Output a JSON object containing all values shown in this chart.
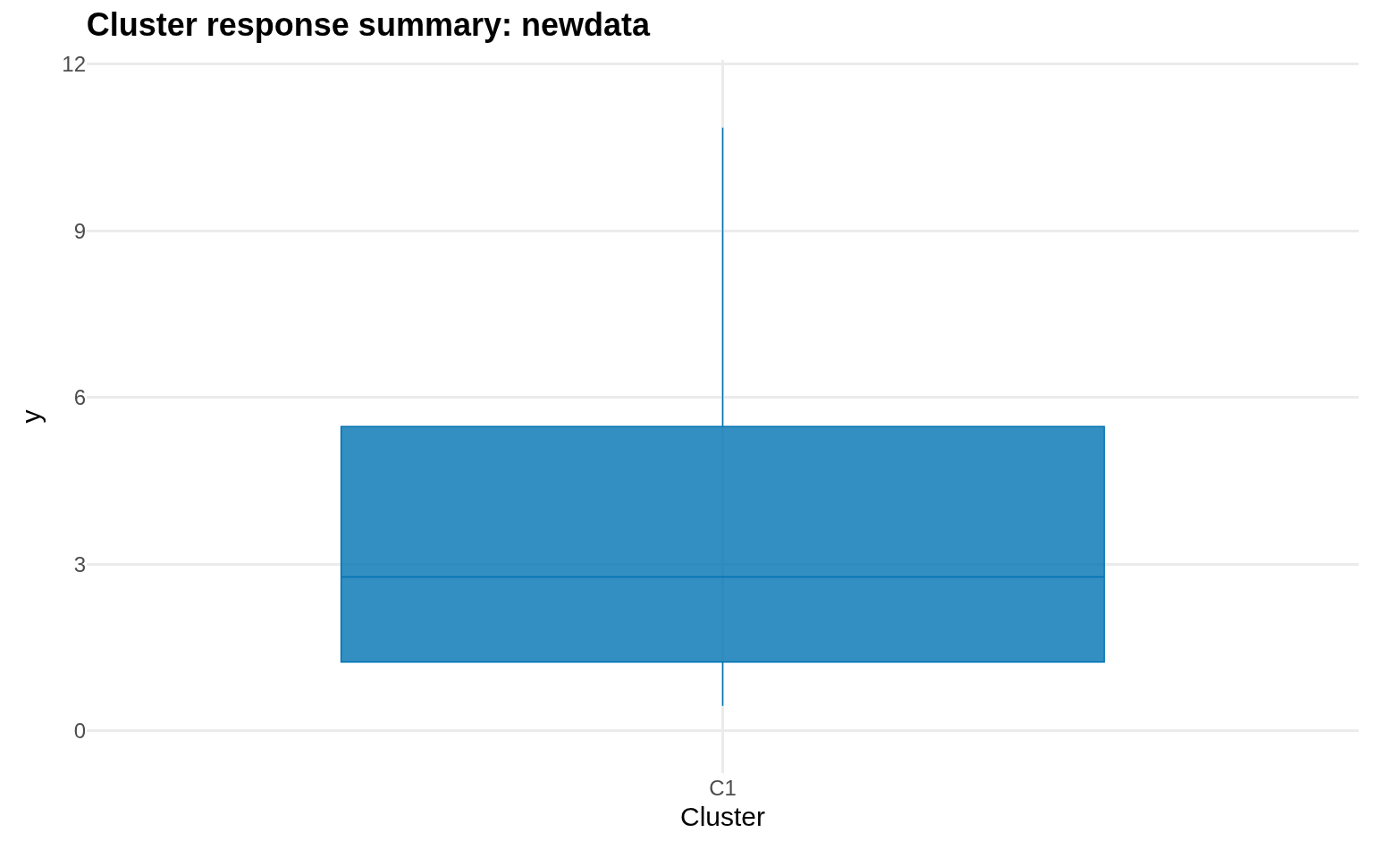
{
  "chart_data": {
    "type": "box",
    "title": "Cluster response summary: newdata",
    "xlabel": "Cluster",
    "ylabel": "y",
    "categories": [
      "C1"
    ],
    "boxes": [
      {
        "low": 0.45,
        "q1": 1.24,
        "median": 2.77,
        "q3": 5.48,
        "high": 10.86
      }
    ],
    "color": "#0072b2",
    "ylim": [
      -0.76,
      12.08
    ],
    "yticks": [
      0,
      3,
      6,
      9,
      12
    ],
    "grid": true
  }
}
